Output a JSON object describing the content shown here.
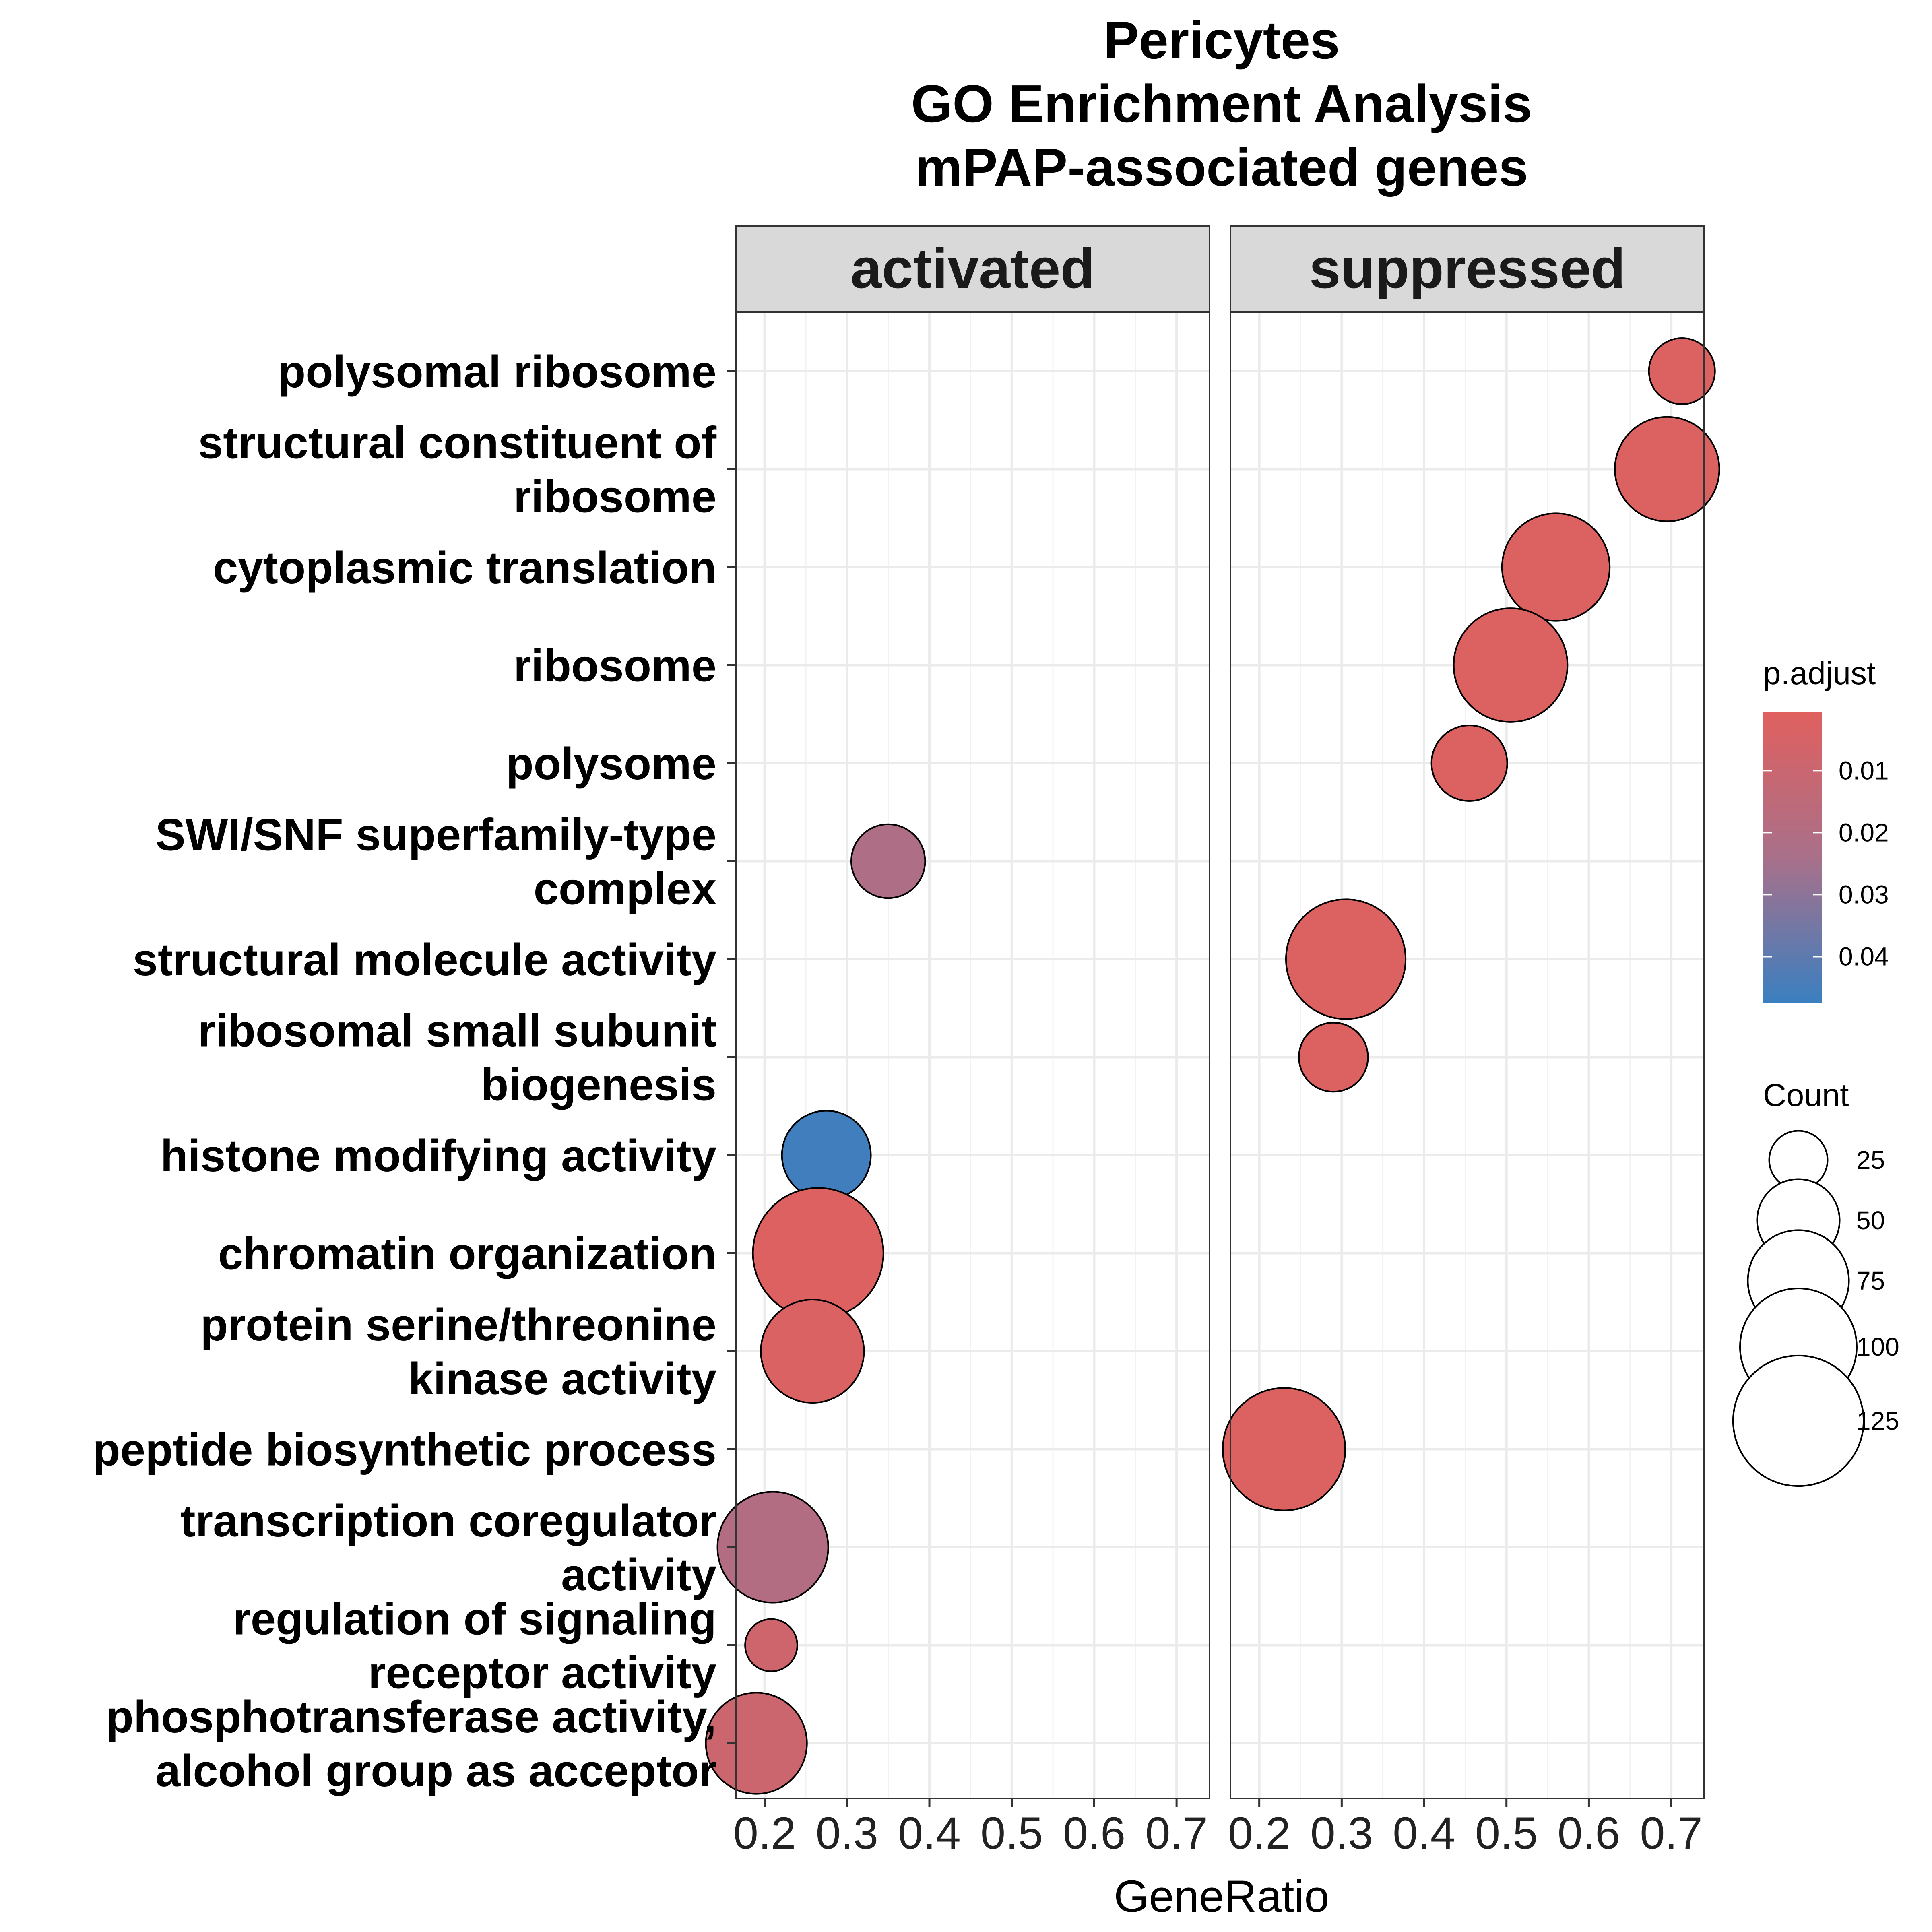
{
  "chart_data": {
    "type": "scatter",
    "title": [
      "Pericytes",
      "GO Enrichment Analysis",
      "mPAP-associated genes"
    ],
    "xlabel": "GeneRatio",
    "ylabel": "",
    "xlim": [
      0.165,
      0.74
    ],
    "x_ticks": [
      "0.2",
      "0.3",
      "0.4",
      "0.5",
      "0.6",
      "0.7"
    ],
    "grid": true,
    "panels": [
      "activated",
      "suppressed"
    ],
    "categories": [
      "polysomal ribosome",
      "structural constituent of ribosome",
      "cytoplasmic translation",
      "ribosome",
      "polysome",
      "SWI/SNF superfamily-type complex",
      "structural molecule activity",
      "ribosomal small subunit biogenesis",
      "histone modifying activity",
      "chromatin organization",
      "protein serine/threonine kinase activity",
      "peptide biosynthetic process",
      "transcription coregulator activity",
      "regulation of signaling receptor activity",
      "phosphotransferase activity, alcohol group as acceptor"
    ],
    "category_label_lines": [
      [
        "polysomal ribosome"
      ],
      [
        "structural constituent of",
        "ribosome"
      ],
      [
        "cytoplasmic translation"
      ],
      [
        "ribosome"
      ],
      [
        "polysome"
      ],
      [
        "SWI/SNF superfamily-type",
        "complex"
      ],
      [
        "structural molecule activity"
      ],
      [
        "ribosomal small subunit",
        "biogenesis"
      ],
      [
        "histone modifying activity"
      ],
      [
        "chromatin organization"
      ],
      [
        "protein serine/threonine",
        "kinase activity"
      ],
      [
        "peptide biosynthetic process"
      ],
      [
        "transcription coregulator",
        "activity"
      ],
      [
        "regulation of signaling",
        "receptor activity"
      ],
      [
        "phosphotransferase activity,",
        "alcohol group as acceptor"
      ]
    ],
    "points": [
      {
        "panel": "activated",
        "term": "SWI/SNF superfamily-type complex",
        "gene_ratio": 0.35,
        "count": 40,
        "p_adjust": 0.022
      },
      {
        "panel": "activated",
        "term": "histone modifying activity",
        "gene_ratio": 0.275,
        "count": 58,
        "p_adjust": 0.046
      },
      {
        "panel": "activated",
        "term": "chromatin organization",
        "gene_ratio": 0.265,
        "count": 125,
        "p_adjust": 0.0018
      },
      {
        "panel": "activated",
        "term": "protein serine/threonine kinase activity",
        "gene_ratio": 0.258,
        "count": 78,
        "p_adjust": 0.003
      },
      {
        "panel": "activated",
        "term": "transcription coregulator activity",
        "gene_ratio": 0.21,
        "count": 90,
        "p_adjust": 0.02
      },
      {
        "panel": "activated",
        "term": "regulation of signaling receptor activity",
        "gene_ratio": 0.208,
        "count": 20,
        "p_adjust": 0.008
      },
      {
        "panel": "activated",
        "term": "phosphotransferase activity, alcohol group as acceptor",
        "gene_ratio": 0.19,
        "count": 75,
        "p_adjust": 0.009
      },
      {
        "panel": "suppressed",
        "term": "polysomal ribosome",
        "gene_ratio": 0.713,
        "count": 32,
        "p_adjust": 0.002
      },
      {
        "panel": "suppressed",
        "term": "structural constituent of ribosome",
        "gene_ratio": 0.695,
        "count": 80,
        "p_adjust": 0.002
      },
      {
        "panel": "suppressed",
        "term": "cytoplasmic translation",
        "gene_ratio": 0.56,
        "count": 85,
        "p_adjust": 0.002
      },
      {
        "panel": "suppressed",
        "term": "ribosome",
        "gene_ratio": 0.505,
        "count": 95,
        "p_adjust": 0.002
      },
      {
        "panel": "suppressed",
        "term": "polysome",
        "gene_ratio": 0.455,
        "count": 42,
        "p_adjust": 0.002
      },
      {
        "panel": "suppressed",
        "term": "structural molecule activity",
        "gene_ratio": 0.305,
        "count": 105,
        "p_adjust": 0.002
      },
      {
        "panel": "suppressed",
        "term": "ribosomal small subunit biogenesis",
        "gene_ratio": 0.29,
        "count": 35,
        "p_adjust": 0.002
      },
      {
        "panel": "suppressed",
        "term": "peptide biosynthetic process",
        "gene_ratio": 0.23,
        "count": 110,
        "p_adjust": 0.002
      }
    ],
    "color_scale": {
      "title": "p.adjust",
      "low_color": "#E0605E",
      "mid_color": "#A9708A",
      "high_color": "#3A7FC0",
      "range": [
        0.0005,
        0.0475
      ],
      "ticks": [
        "0.01",
        "0.02",
        "0.03",
        "0.04"
      ]
    },
    "size_scale": {
      "title": "Count",
      "breaks": [
        "25",
        "50",
        "75",
        "100",
        "125"
      ]
    },
    "legend_position": "right"
  }
}
